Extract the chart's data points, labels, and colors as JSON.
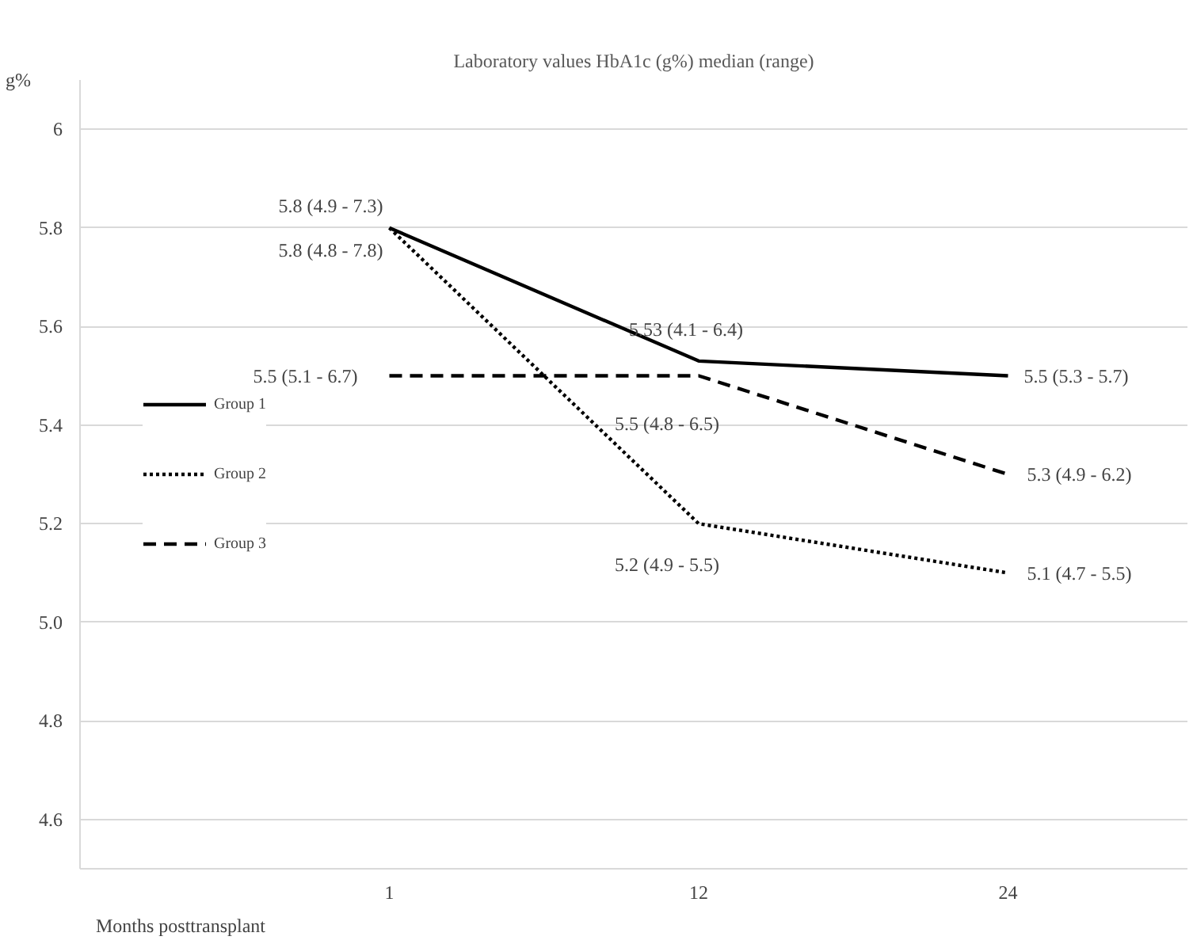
{
  "chart_data": {
    "type": "line",
    "title": "Laboratory values HbA1c (g%) median (range)",
    "xlabel": "Months posttransplant",
    "ylabel": "g%",
    "categories": [
      "1",
      "12",
      "24"
    ],
    "ylim": [
      4.5,
      6.1
    ],
    "yticks": [
      {
        "value": 4.6,
        "label": "4.6"
      },
      {
        "value": 4.8,
        "label": "4.8"
      },
      {
        "value": 5.0,
        "label": "5.0"
      },
      {
        "value": 5.2,
        "label": "5.2"
      },
      {
        "value": 5.4,
        "label": "5.4"
      },
      {
        "value": 5.6,
        "label": "5.6"
      },
      {
        "value": 5.8,
        "label": "5.8"
      },
      {
        "value": 6.0,
        "label": "6"
      }
    ],
    "grid": "y",
    "legend": "left",
    "marker": "none",
    "series": [
      {
        "name": "Group 1",
        "color": "#000000",
        "line_style": "solid",
        "values": [
          5.8,
          5.53,
          5.5
        ],
        "value_labels": [
          "5.8 (4.9 - 7.3)",
          "5.53 (4.1 - 6.4)",
          "5.5 (5.3 - 5.7)"
        ]
      },
      {
        "name": "Group 2",
        "color": "#000000",
        "line_style": "dotted",
        "values": [
          5.8,
          5.2,
          5.1
        ],
        "value_labels": [
          "5.8 (4.8 - 7.8)",
          "5.2 (4.9 - 5.5)",
          "5.1 (4.7 - 5.5)"
        ]
      },
      {
        "name": "Group 3",
        "color": "#000000",
        "line_style": "dashed",
        "values": [
          5.5,
          5.5,
          5.3
        ],
        "value_labels": [
          "5.5 (5.1 - 6.7)",
          "5.5 (4.8 - 6.5)",
          "5.3 (4.9 - 6.2)"
        ]
      }
    ]
  }
}
